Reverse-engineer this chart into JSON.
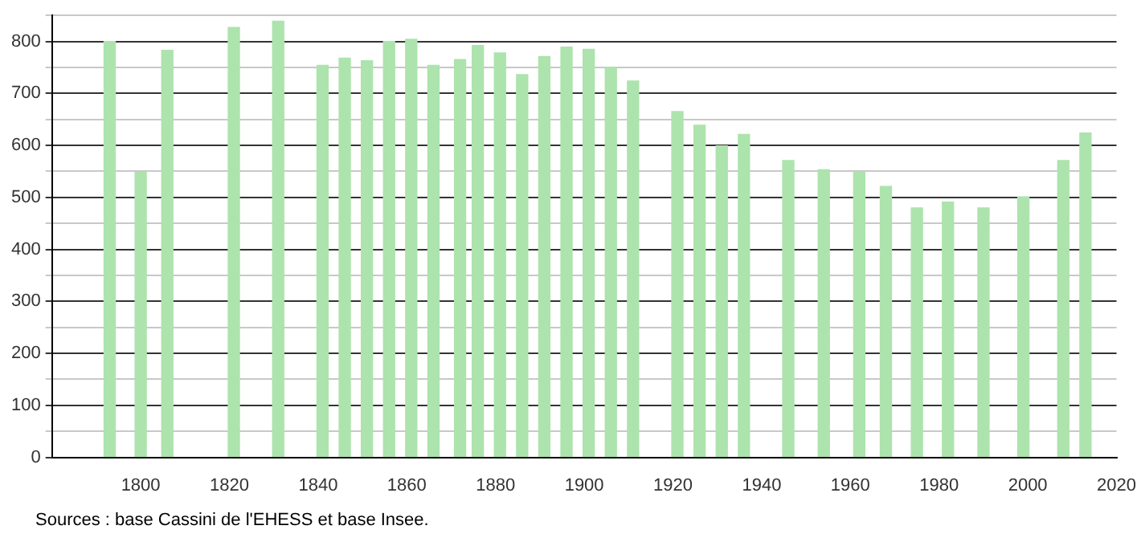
{
  "chart_data": {
    "type": "bar",
    "x": [
      1793,
      1800,
      1806,
      1821,
      1831,
      1841,
      1846,
      1851,
      1856,
      1861,
      1866,
      1872,
      1876,
      1881,
      1886,
      1891,
      1896,
      1901,
      1906,
      1911,
      1921,
      1926,
      1931,
      1936,
      1946,
      1954,
      1962,
      1968,
      1975,
      1982,
      1990,
      1999,
      2008,
      2013
    ],
    "values": [
      800,
      548,
      783,
      827,
      839,
      754,
      768,
      763,
      800,
      804,
      754,
      765,
      792,
      778,
      736,
      771,
      789,
      785,
      750,
      724,
      665,
      639,
      599,
      621,
      571,
      553,
      549,
      521,
      480,
      491,
      480,
      501,
      571,
      624
    ],
    "color": "#ade3ad",
    "xlim": [
      1780,
      2020
    ],
    "xticks": [
      1800,
      1820,
      1840,
      1860,
      1880,
      1900,
      1920,
      1940,
      1960,
      1980,
      2000,
      2020
    ],
    "ylim": [
      0,
      850
    ],
    "yticks": [
      0,
      {
        "value": 50,
        "label": null
      },
      100,
      {
        "value": 150,
        "label": null
      },
      200,
      {
        "value": 250,
        "label": null
      },
      300,
      {
        "value": 350,
        "label": null
      },
      400,
      {
        "value": 450,
        "label": null
      },
      500,
      {
        "value": 550,
        "label": null
      },
      600,
      {
        "value": 650,
        "label": null
      },
      700,
      {
        "value": 750,
        "label": null
      },
      800,
      {
        "value": 850,
        "label": null
      }
    ],
    "grid": "y",
    "legend": false,
    "annotations": [
      "Sources : base Cassini de l'EHESS et base Insee."
    ]
  }
}
